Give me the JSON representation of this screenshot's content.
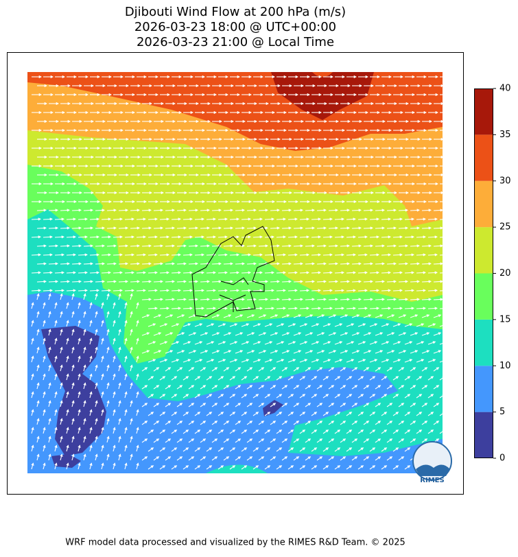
{
  "title_lines": [
    "Djibouti Wind Flow at 200 hPa (m/s)",
    "2026-03-23 18:00 @ UTC+00:00",
    "2026-03-23 21:00 @ Local Time"
  ],
  "colorbar": {
    "ticks": [
      0,
      5,
      10,
      15,
      20,
      25,
      30,
      35,
      40
    ],
    "colors": [
      "#3d3f9e",
      "#4497fd",
      "#1ddfc0",
      "#69fe5c",
      "#cde92f",
      "#fdad39",
      "#ec5117",
      "#a7180a"
    ]
  },
  "logo_text": "RIMES",
  "footer": "WRF model data processed and visualized by the RIMES R&D Team. © 2025"
}
